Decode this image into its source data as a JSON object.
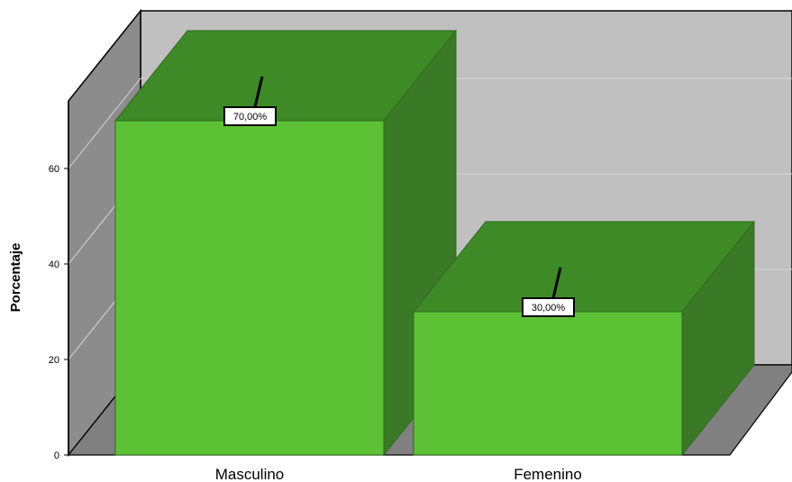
{
  "chart_data": {
    "type": "bar",
    "categories": [
      "Masculino",
      "Femenino"
    ],
    "values": [
      70,
      30
    ],
    "data_labels": [
      "70,00%",
      "30,00%"
    ],
    "ylabel": "Porcentaje",
    "xlabel": "",
    "title": "",
    "ylim": [
      0,
      70
    ],
    "yticks": [
      0,
      20,
      40,
      60
    ],
    "ytick_labels": [
      "0",
      "20",
      "40",
      "60"
    ],
    "grid": true,
    "three_d": true,
    "colors": {
      "bar_front": "#5dc136",
      "bar_top": "#3e8a27",
      "bar_side": "#3a7a26",
      "back_wall": "#c0c0c0",
      "side_wall": "#8c8c8c",
      "floor": "#808080",
      "grid": "#d8d8d8"
    }
  }
}
